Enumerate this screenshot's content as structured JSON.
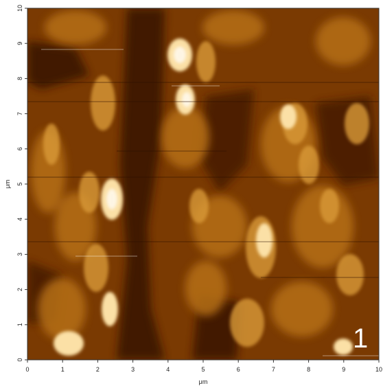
{
  "image": {
    "description_type": "afm-height-map",
    "panel_label": "1",
    "colormap": [
      "#2a0d00",
      "#6b2f00",
      "#b06a10",
      "#e3b04a",
      "#fff6e0"
    ]
  },
  "axes": {
    "x_unit": "μm",
    "y_unit": "μm",
    "x_ticks": [
      "0",
      "1",
      "2",
      "3",
      "4",
      "5",
      "6",
      "7",
      "8",
      "9",
      "10"
    ],
    "y_ticks": [
      "0",
      "1",
      "2",
      "3",
      "4",
      "5",
      "6",
      "7",
      "8",
      "9",
      "10"
    ],
    "x_range": [
      0,
      10
    ],
    "y_range": [
      0,
      10
    ]
  }
}
